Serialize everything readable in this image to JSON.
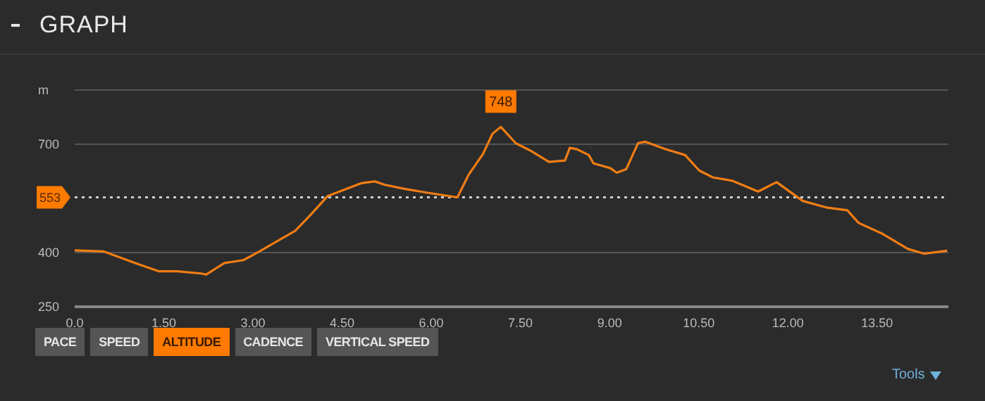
{
  "chart_data": {
    "type": "line",
    "title": "GRAPH",
    "x": [
      0,
      0.49,
      1.02,
      1.42,
      1.74,
      2.13,
      2.21,
      2.52,
      2.84,
      3.12,
      3.39,
      3.71,
      3.95,
      4.26,
      4.58,
      4.82,
      5.05,
      5.21,
      5.53,
      5.92,
      6.44,
      6.63,
      6.87,
      7.03,
      7.17,
      7.42,
      7.66,
      7.98,
      8.25,
      8.33,
      8.45,
      8.65,
      8.73,
      9.01,
      9.12,
      9.28,
      9.48,
      9.6,
      9.95,
      10.27,
      10.51,
      10.74,
      11.06,
      11.5,
      11.81,
      12.25,
      12.64,
      13,
      13.19,
      13.59,
      14.02,
      14.29,
      14.68
    ],
    "series": [
      {
        "color": "#f07d14",
        "values": [
          406,
          403,
          371,
          348,
          348,
          342,
          339,
          371,
          379,
          404,
          430,
          460,
          501,
          557,
          577,
          592,
          597,
          588,
          577,
          566,
          553,
          616,
          673,
          729,
          748,
          703,
          683,
          651,
          655,
          690,
          686,
          670,
          647,
          634,
          621,
          631,
          703,
          707,
          686,
          670,
          627,
          608,
          599,
          569,
          595,
          543,
          525,
          517,
          482,
          452,
          410,
          397,
          405
        ]
      }
    ],
    "xlim": [
      0,
      14.7
    ],
    "xticks": [
      {
        "value": 0,
        "label": "0.0"
      },
      {
        "value": 1.5,
        "label": "1.50"
      },
      {
        "value": 3,
        "label": "3.00"
      },
      {
        "value": 4.5,
        "label": "4.50"
      },
      {
        "value": 6,
        "label": "6.00"
      },
      {
        "value": 7.5,
        "label": "7.50"
      },
      {
        "value": 9,
        "label": "9.00"
      },
      {
        "value": 10.5,
        "label": "10.50"
      },
      {
        "value": 12,
        "label": "12.00"
      },
      {
        "value": 13.5,
        "label": "13.50"
      }
    ],
    "ylim": [
      250,
      850
    ],
    "yticks": [
      250,
      400,
      700,
      {
        "value": 850,
        "label": "m"
      }
    ],
    "grid": "y",
    "marker": "none",
    "line_style": "solid",
    "ref_lines": [
      {
        "axis": "y",
        "value": 553,
        "label": "553",
        "color": "#cccccc",
        "line_style": "dotted"
      }
    ],
    "annotations": [
      {
        "text": "748",
        "x": 7.17,
        "y": 748
      },
      "PACE",
      "SPEED",
      "ALTITUDE",
      "CADENCE",
      "VERTICAL SPEED",
      "Tools"
    ]
  }
}
